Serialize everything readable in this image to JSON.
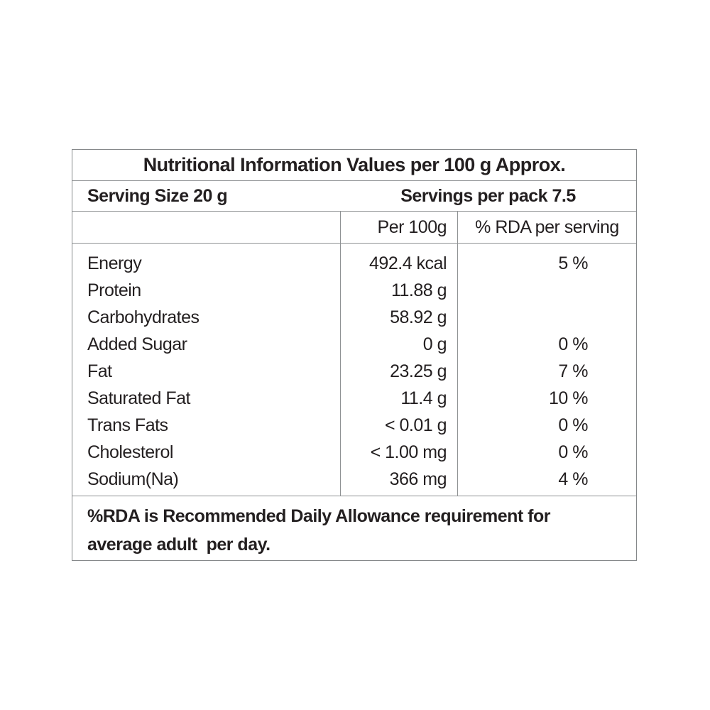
{
  "label": {
    "title": "Nutritional Information Values per 100 g Approx.",
    "serving_size": "Serving Size 20 g",
    "servings_per_pack": "Servings per pack 7.5",
    "columns": {
      "nutrient": "",
      "per_100g": "Per 100g",
      "rda": "% RDA per serving"
    },
    "rows": [
      {
        "nutrient": "Energy",
        "per_100g": "492.4 kcal",
        "rda": "5 %"
      },
      {
        "nutrient": "Protein",
        "per_100g": "11.88 g",
        "rda": ""
      },
      {
        "nutrient": "Carbohydrates",
        "per_100g": "58.92 g",
        "rda": ""
      },
      {
        "nutrient": "Added Sugar",
        "per_100g": "0 g",
        "rda": "0 %"
      },
      {
        "nutrient": "Fat",
        "per_100g": "23.25 g",
        "rda": "7 %"
      },
      {
        "nutrient": "Saturated Fat",
        "per_100g": "11.4 g",
        "rda": "10 %"
      },
      {
        "nutrient": "Trans Fats",
        "per_100g": "< 0.01 g",
        "rda": "0 %"
      },
      {
        "nutrient": "Cholesterol",
        "per_100g": "< 1.00 mg",
        "rda": "0 %"
      },
      {
        "nutrient": "Sodium(Na)",
        "per_100g": "366 mg",
        "rda": "4 %"
      }
    ],
    "footnote_line1": "%RDA is Recommended Daily Allowance requirement for",
    "footnote_line2": "average adult  per day.",
    "colors": {
      "text": "#231f20",
      "border": "#8e9193",
      "background": "#ffffff"
    }
  }
}
